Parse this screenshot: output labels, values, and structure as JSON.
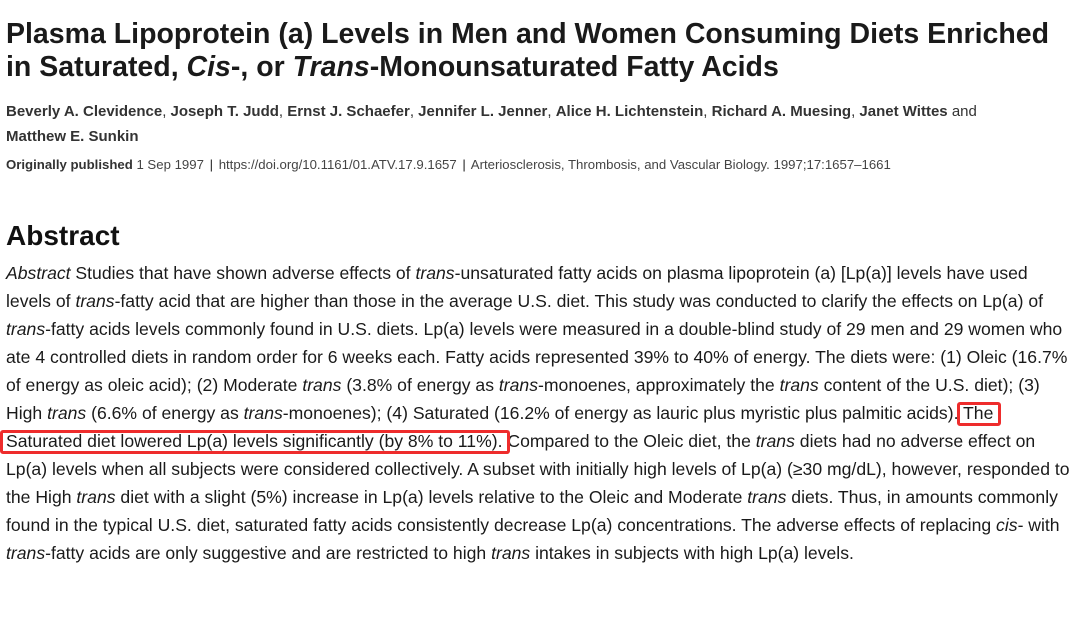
{
  "title": {
    "p1": "Plasma Lipoprotein (a) Levels in Men and Women Consuming Diets Enriched in Saturated, ",
    "cis": "Cis",
    "p2": "-, or ",
    "trans": "Trans",
    "p3": "-Monounsaturated Fatty Acids"
  },
  "authors": [
    "Beverly A. Clevidence",
    "Joseph T. Judd",
    "Ernst J. Schaefer",
    "Jennifer L. Jenner",
    "Alice H. Lichtenstein",
    "Richard A. Muesing",
    "Janet Wittes",
    "Matthew E. Sunkin"
  ],
  "authors_and": "and",
  "meta": {
    "published_label": "Originally published",
    "published_date": "1 Sep 1997",
    "doi": "https://doi.org/10.1161/01.ATV.17.9.1657",
    "journal": "Arteriosclerosis, Thrombosis, and Vascular Biology. 1997;17:1657–1661"
  },
  "abstract_heading": "Abstract",
  "abstract_segments": [
    {
      "t": "Abstract",
      "i": true
    },
    {
      "t": " Studies that have shown adverse effects of "
    },
    {
      "t": "trans",
      "i": true
    },
    {
      "t": "-unsaturated fatty acids on plasma lipoprotein (a) [Lp(a)] levels have used levels of "
    },
    {
      "t": "trans",
      "i": true
    },
    {
      "t": "-fatty acid that are higher than those in the average U.S. diet. This study was conducted to clarify the effects on Lp(a) of "
    },
    {
      "t": "trans",
      "i": true
    },
    {
      "t": "-fatty acids levels commonly found in U.S. diets. Lp(a) levels were measured in a double-blind study of 29 men and 29 women who ate 4 controlled diets in random order for 6 weeks each. Fatty acids represented 39% to 40% of energy. The diets were: (1) Oleic (16.7% of energy as oleic acid); (2) Moderate "
    },
    {
      "t": "trans",
      "i": true
    },
    {
      "t": " (3.8% of energy as "
    },
    {
      "t": "trans",
      "i": true
    },
    {
      "t": "-monoenes, approximately the "
    },
    {
      "t": "trans",
      "i": true
    },
    {
      "t": " content of the U.S. diet); (3) High "
    },
    {
      "t": "trans",
      "i": true
    },
    {
      "t": " (6.6% of energy as "
    },
    {
      "t": "trans",
      "i": true
    },
    {
      "t": "-monoenes); (4) Saturated (16.2% of energy as lauric plus myristic plus palmitic acids). "
    },
    {
      "t": "The Saturated diet lowered Lp(a) levels significantly (by 8% to 11%).",
      "hl": true
    },
    {
      "t": " Compared to the Oleic diet, the "
    },
    {
      "t": "trans",
      "i": true
    },
    {
      "t": " diets had no adverse effect on Lp(a) levels when all subjects were considered collectively. A subset with initially high levels of Lp(a) (≥30 mg/dL), however, responded to the High "
    },
    {
      "t": "trans",
      "i": true
    },
    {
      "t": " diet with a slight (5%) increase in Lp(a) levels relative to the Oleic and Moderate "
    },
    {
      "t": "trans",
      "i": true
    },
    {
      "t": " diets. Thus, in amounts commonly found in the typical U.S. diet, saturated fatty acids consistently decrease Lp(a) concentrations. The adverse effects of replacing "
    },
    {
      "t": "cis",
      "i": true
    },
    {
      "t": "- with "
    },
    {
      "t": "trans",
      "i": true
    },
    {
      "t": "-fatty acids are only suggestive and are restricted to high "
    },
    {
      "t": "trans",
      "i": true
    },
    {
      "t": " intakes in subjects with high Lp(a) levels."
    }
  ],
  "highlight_color": "#ee2c2c"
}
